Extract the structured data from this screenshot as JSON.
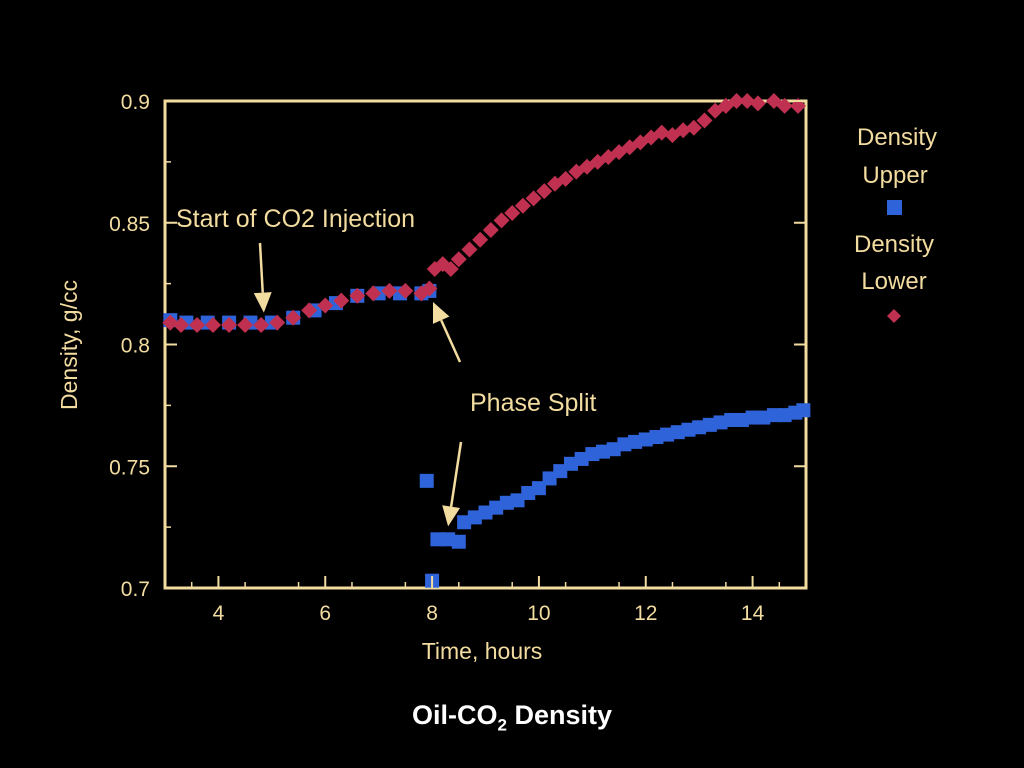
{
  "caption": {
    "prefix": "Oil-CO",
    "subscript": "2",
    "suffix": " Density"
  },
  "colors": {
    "background": "#000000",
    "axes": "#f3dca0",
    "upper": "#2f63d9",
    "lower": "#c03050",
    "arrow": "#f3dca0",
    "caption": "#ffffff"
  },
  "chart_data": {
    "type": "scatter",
    "title": "",
    "xlabel": "Time, hours",
    "ylabel": "Density, g/cc",
    "xlim": [
      3,
      15
    ],
    "ylim": [
      0.7,
      0.9
    ],
    "xticks": [
      4,
      6,
      8,
      10,
      12,
      14
    ],
    "yticks": [
      0.7,
      0.75,
      0.8,
      0.85,
      0.9
    ],
    "xtick_labels": [
      "4",
      "6",
      "8",
      "10",
      "12",
      "14"
    ],
    "ytick_labels": [
      "0.7",
      "0.75",
      "0.8",
      "0.85",
      "0.9"
    ],
    "grid": false,
    "legend": {
      "position": "right",
      "entries": [
        {
          "label_line1": "Density",
          "label_line2": "Upper",
          "marker": "square"
        },
        {
          "label_line1": "Density",
          "label_line2": "Lower",
          "marker": "diamond"
        }
      ]
    },
    "annotations": [
      {
        "text": "Start of CO2 Injection",
        "target": [
          4.85,
          0.809
        ]
      },
      {
        "text": "Phase Split",
        "target": [
          8.3,
          0.722
        ]
      }
    ],
    "series": [
      {
        "name": "Density Upper",
        "marker": "square",
        "x": [
          3.1,
          3.4,
          3.8,
          4.2,
          4.6,
          5.0,
          5.4,
          5.8,
          6.2,
          6.6,
          7.0,
          7.4,
          7.8,
          7.95,
          7.9,
          8.0,
          8.1,
          8.3,
          8.5,
          8.6,
          8.8,
          9.0,
          9.2,
          9.4,
          9.6,
          9.8,
          10.0,
          10.2,
          10.4,
          10.6,
          10.8,
          11.0,
          11.2,
          11.4,
          11.6,
          11.8,
          12.0,
          12.2,
          12.4,
          12.6,
          12.8,
          13.0,
          13.2,
          13.4,
          13.6,
          13.8,
          14.0,
          14.2,
          14.4,
          14.6,
          14.8,
          14.95
        ],
        "y": [
          0.81,
          0.809,
          0.809,
          0.809,
          0.809,
          0.809,
          0.811,
          0.814,
          0.817,
          0.82,
          0.821,
          0.821,
          0.821,
          0.822,
          0.744,
          0.703,
          0.72,
          0.72,
          0.719,
          0.727,
          0.729,
          0.731,
          0.733,
          0.735,
          0.736,
          0.739,
          0.741,
          0.745,
          0.748,
          0.751,
          0.753,
          0.755,
          0.756,
          0.757,
          0.759,
          0.76,
          0.761,
          0.762,
          0.763,
          0.764,
          0.765,
          0.766,
          0.767,
          0.768,
          0.769,
          0.769,
          0.77,
          0.77,
          0.771,
          0.771,
          0.772,
          0.773
        ]
      },
      {
        "name": "Density Lower",
        "marker": "diamond",
        "x": [
          3.1,
          3.3,
          3.6,
          3.9,
          4.2,
          4.5,
          4.8,
          5.1,
          5.4,
          5.7,
          6.0,
          6.3,
          6.6,
          6.9,
          7.2,
          7.5,
          7.8,
          7.95,
          8.05,
          8.2,
          8.35,
          8.5,
          8.7,
          8.9,
          9.1,
          9.3,
          9.5,
          9.7,
          9.9,
          10.1,
          10.3,
          10.5,
          10.7,
          10.9,
          11.1,
          11.3,
          11.5,
          11.7,
          11.9,
          12.1,
          12.3,
          12.5,
          12.7,
          12.9,
          13.1,
          13.3,
          13.5,
          13.7,
          13.9,
          14.1,
          14.4,
          14.6,
          14.85
        ],
        "y": [
          0.809,
          0.808,
          0.808,
          0.808,
          0.808,
          0.808,
          0.808,
          0.809,
          0.811,
          0.814,
          0.816,
          0.818,
          0.82,
          0.821,
          0.822,
          0.822,
          0.821,
          0.823,
          0.831,
          0.833,
          0.831,
          0.835,
          0.839,
          0.843,
          0.847,
          0.851,
          0.854,
          0.857,
          0.86,
          0.863,
          0.866,
          0.868,
          0.871,
          0.873,
          0.875,
          0.877,
          0.879,
          0.881,
          0.883,
          0.885,
          0.887,
          0.886,
          0.888,
          0.889,
          0.892,
          0.896,
          0.898,
          0.9,
          0.9,
          0.899,
          0.9,
          0.898,
          0.898
        ]
      }
    ]
  }
}
